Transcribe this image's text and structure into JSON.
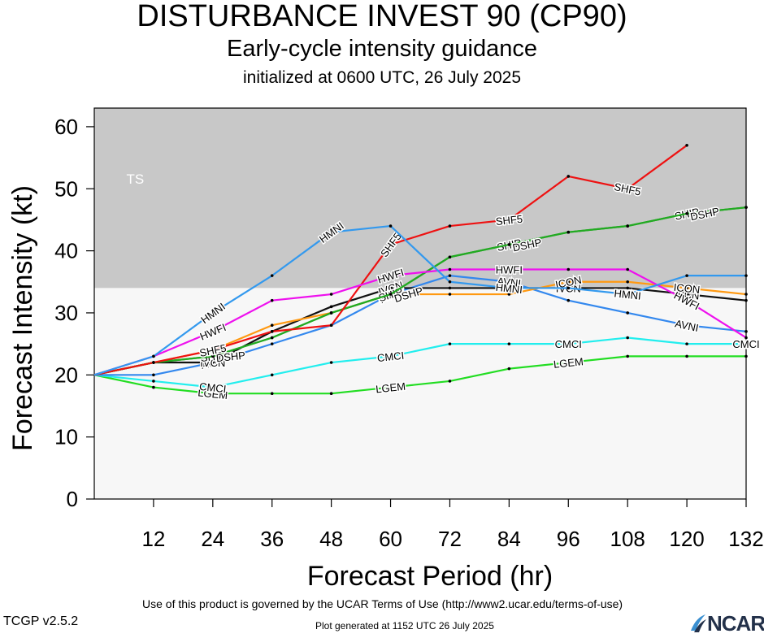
{
  "titles": {
    "main": "DISTURBANCE INVEST 90 (CP90)",
    "sub": "Early-cycle intensity guidance",
    "init": "initialized at 0600 UTC, 26 July 2025"
  },
  "footer": {
    "terms": "Use of this product is governed by the UCAR Terms of Use (http://www2.ucar.edu/terms-of-use)",
    "version": "TCGP v2.5.2",
    "generated": "Plot generated at 1152 UTC   26 July 2025",
    "logo": "NCAR"
  },
  "chart_data": {
    "type": "line",
    "xlabel": "Forecast Period (hr)",
    "ylabel": "Forecast Intensity (kt)",
    "xlim": [
      0,
      132
    ],
    "ylim": [
      0,
      63
    ],
    "xticks": [
      12,
      24,
      36,
      48,
      60,
      72,
      84,
      96,
      108,
      120,
      132
    ],
    "yticks": [
      0,
      10,
      20,
      30,
      40,
      50,
      60
    ],
    "regions": [
      {
        "label": "TS",
        "from": 34,
        "to": 63,
        "color": "#c8c8c8"
      },
      {
        "label": "",
        "from": 0,
        "to": 34,
        "color": "#f7f7f7"
      }
    ],
    "series": [
      {
        "name": "LGEM",
        "color": "#22dd22",
        "x": [
          0,
          12,
          24,
          36,
          48,
          60,
          72,
          84,
          96,
          108,
          120,
          132
        ],
        "y": [
          20,
          18,
          17,
          17,
          17,
          18,
          19,
          21,
          22,
          23,
          23,
          23
        ],
        "labels_at": [
          24,
          60,
          96
        ]
      },
      {
        "name": "CMCI",
        "color": "#22eeee",
        "x": [
          0,
          12,
          24,
          36,
          48,
          60,
          72,
          84,
          96,
          108,
          120,
          132
        ],
        "y": [
          20,
          19,
          18,
          20,
          22,
          23,
          25,
          25,
          25,
          26,
          25,
          25
        ],
        "labels_at": [
          24,
          60,
          96,
          132
        ]
      },
      {
        "name": "AVNI",
        "color": "#3388ee",
        "x": [
          0,
          12,
          24,
          36,
          48,
          60,
          72,
          84,
          96,
          108,
          120,
          132
        ],
        "y": [
          20,
          20,
          22,
          25,
          28,
          33,
          36,
          35,
          32,
          30,
          28,
          27
        ],
        "labels_at": [
          24,
          60,
          84,
          120
        ]
      },
      {
        "name": "IVCN",
        "color": "#111111",
        "x": [
          0,
          12,
          24,
          36,
          48,
          60,
          72,
          84,
          96,
          108,
          120,
          132
        ],
        "y": [
          20,
          22,
          22,
          27,
          31,
          34,
          34,
          34,
          34,
          34,
          33,
          32
        ],
        "labels_at": [
          24,
          60,
          96,
          120
        ]
      },
      {
        "name": "ICON",
        "color": "#ff9911",
        "x": [
          0,
          12,
          24,
          36,
          48,
          60,
          72,
          84,
          96,
          108,
          120,
          132
        ],
        "y": [
          20,
          22,
          24,
          28,
          30,
          33,
          33,
          33,
          35,
          35,
          34,
          33
        ],
        "labels_at": [
          24,
          60,
          96,
          120
        ]
      },
      {
        "name": "SHIP",
        "color": "#22aa22",
        "x": [
          0,
          12,
          24,
          36,
          48,
          60,
          72,
          84,
          96,
          108,
          120,
          132
        ],
        "y": [
          20,
          22,
          23,
          26,
          30,
          33,
          39,
          41,
          43,
          44,
          46,
          47
        ],
        "labels_at": [
          24,
          60,
          84,
          120
        ]
      },
      {
        "name": "DSHP",
        "color": "#22aa22",
        "x": [
          0,
          12,
          24,
          36,
          48,
          60,
          72,
          84,
          96,
          108,
          120,
          132
        ],
        "y": [
          20,
          22,
          23,
          26,
          30,
          33,
          39,
          41,
          43,
          44,
          46,
          47
        ],
        "labels_at": [
          24,
          60,
          84,
          120
        ]
      },
      {
        "name": "SHF5",
        "color": "#ee1111",
        "x": [
          0,
          12,
          24,
          36,
          48,
          60,
          72,
          84,
          96,
          108,
          120
        ],
        "y": [
          20,
          22,
          24,
          27,
          28,
          41,
          44,
          45,
          52,
          50,
          57
        ],
        "labels_at": [
          24,
          60,
          84,
          108
        ]
      },
      {
        "name": "HWFI",
        "color": "#ee11ee",
        "x": [
          0,
          12,
          24,
          36,
          48,
          60,
          72,
          84,
          96,
          108,
          120,
          132
        ],
        "y": [
          20,
          23,
          27,
          32,
          33,
          36,
          37,
          37,
          37,
          37,
          32,
          26
        ],
        "labels_at": [
          24,
          60,
          84,
          120
        ]
      },
      {
        "name": "HMNI",
        "color": "#3399ee",
        "x": [
          0,
          12,
          24,
          36,
          48,
          60,
          72,
          84,
          96,
          108,
          120,
          132
        ],
        "y": [
          20,
          23,
          30,
          36,
          43,
          44,
          35,
          34,
          34,
          33,
          36,
          36
        ],
        "labels_at": [
          24,
          48,
          84,
          108
        ]
      }
    ]
  }
}
